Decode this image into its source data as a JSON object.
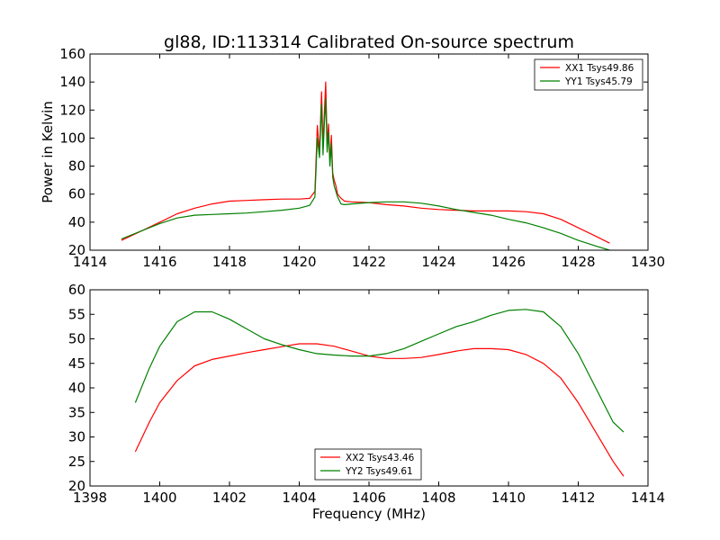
{
  "chart_data": [
    {
      "type": "line",
      "title": "gl88, ID:113314 Calibrated On-source spectrum",
      "xlabel": "",
      "ylabel": "Power in Kelvin",
      "xlim": [
        1414,
        1430
      ],
      "ylim": [
        20,
        160
      ],
      "xticks": [
        1414,
        1416,
        1418,
        1420,
        1422,
        1424,
        1426,
        1428,
        1430
      ],
      "yticks": [
        20,
        40,
        60,
        80,
        100,
        120,
        140,
        160
      ],
      "legend": "top-right",
      "series": [
        {
          "name": "XX1 Tsys49.86",
          "color": "#ff0000",
          "x": [
            1414.9,
            1415.5,
            1416.0,
            1416.5,
            1417.0,
            1417.5,
            1418.0,
            1418.5,
            1419.0,
            1419.5,
            1420.0,
            1420.3,
            1420.45,
            1420.52,
            1420.58,
            1420.64,
            1420.68,
            1420.72,
            1420.76,
            1420.8,
            1420.84,
            1420.88,
            1420.92,
            1420.96,
            1421.0,
            1421.05,
            1421.1,
            1421.2,
            1421.3,
            1421.5,
            1422.0,
            1422.5,
            1423.0,
            1423.5,
            1424.0,
            1424.5,
            1425.0,
            1425.5,
            1426.0,
            1426.5,
            1427.0,
            1427.5,
            1428.0,
            1428.5,
            1428.9
          ],
          "values": [
            27,
            34,
            40,
            46,
            50,
            53,
            55,
            55.5,
            56,
            56.5,
            56.5,
            57,
            62,
            109,
            90,
            133,
            95,
            118,
            140,
            95,
            110,
            82,
            102,
            75,
            70,
            66,
            60,
            57,
            55,
            54.5,
            54,
            52.5,
            51.5,
            50,
            49,
            48.5,
            48,
            48,
            48,
            47.5,
            46,
            42,
            36,
            30,
            25
          ]
        },
        {
          "name": "YY1 Tsys45.79",
          "color": "#008000",
          "x": [
            1414.9,
            1415.5,
            1416.0,
            1416.5,
            1417.0,
            1417.5,
            1418.0,
            1418.5,
            1419.0,
            1419.5,
            1420.0,
            1420.3,
            1420.45,
            1420.52,
            1420.58,
            1420.64,
            1420.68,
            1420.72,
            1420.76,
            1420.8,
            1420.84,
            1420.88,
            1420.92,
            1420.96,
            1421.0,
            1421.05,
            1421.1,
            1421.2,
            1421.3,
            1421.5,
            1422.0,
            1422.5,
            1423.0,
            1423.5,
            1424.0,
            1424.5,
            1425.0,
            1425.5,
            1426.0,
            1426.5,
            1427.0,
            1427.5,
            1428.0,
            1428.5,
            1428.9
          ],
          "values": [
            28,
            34,
            39,
            43,
            45,
            45.5,
            46,
            46.5,
            47.5,
            48.5,
            50,
            52,
            58,
            100,
            86,
            124,
            88,
            110,
            128,
            90,
            104,
            80,
            96,
            72,
            66,
            62,
            58,
            53,
            52.5,
            53,
            54,
            54.5,
            54.5,
            53.5,
            51.5,
            49,
            47,
            45,
            42,
            39.5,
            36,
            32,
            27,
            23,
            20
          ]
        }
      ]
    },
    {
      "type": "line",
      "title": "",
      "xlabel": "Frequency (MHz)",
      "ylabel": "",
      "xlim": [
        1398,
        1414
      ],
      "ylim": [
        20,
        60
      ],
      "xticks": [
        1398,
        1400,
        1402,
        1404,
        1406,
        1408,
        1410,
        1412,
        1414
      ],
      "yticks": [
        20,
        25,
        30,
        35,
        40,
        45,
        50,
        55,
        60
      ],
      "legend": "lower-center",
      "series": [
        {
          "name": "XX2 Tsys43.46",
          "color": "#ff0000",
          "x": [
            1399.3,
            1399.7,
            1400.0,
            1400.5,
            1401.0,
            1401.5,
            1402.0,
            1402.5,
            1403.0,
            1403.5,
            1404.0,
            1404.5,
            1405.0,
            1405.5,
            1406.0,
            1406.5,
            1407.0,
            1407.5,
            1408.0,
            1408.5,
            1409.0,
            1409.5,
            1410.0,
            1410.5,
            1411.0,
            1411.5,
            1412.0,
            1412.5,
            1413.0,
            1413.3
          ],
          "values": [
            27,
            33,
            37,
            41.5,
            44.5,
            45.8,
            46.5,
            47.2,
            47.8,
            48.4,
            49,
            49,
            48.5,
            47.5,
            46.5,
            46,
            46,
            46.2,
            46.8,
            47.5,
            48,
            48,
            47.8,
            46.8,
            45,
            42,
            37,
            31,
            25,
            22
          ]
        },
        {
          "name": "YY2 Tsys49.61",
          "color": "#008000",
          "x": [
            1399.3,
            1399.7,
            1400.0,
            1400.5,
            1401.0,
            1401.5,
            1402.0,
            1402.5,
            1403.0,
            1403.5,
            1404.0,
            1404.5,
            1405.0,
            1405.5,
            1406.0,
            1406.5,
            1407.0,
            1407.5,
            1408.0,
            1408.5,
            1409.0,
            1409.5,
            1410.0,
            1410.5,
            1411.0,
            1411.5,
            1412.0,
            1412.5,
            1413.0,
            1413.3
          ],
          "values": [
            37,
            44,
            48.5,
            53.5,
            55.5,
            55.5,
            54,
            52,
            50,
            48.8,
            47.8,
            47,
            46.7,
            46.5,
            46.5,
            47,
            48,
            49.5,
            51,
            52.5,
            53.5,
            54.8,
            55.8,
            56,
            55.5,
            52.5,
            47,
            40,
            33,
            31
          ]
        }
      ]
    }
  ]
}
